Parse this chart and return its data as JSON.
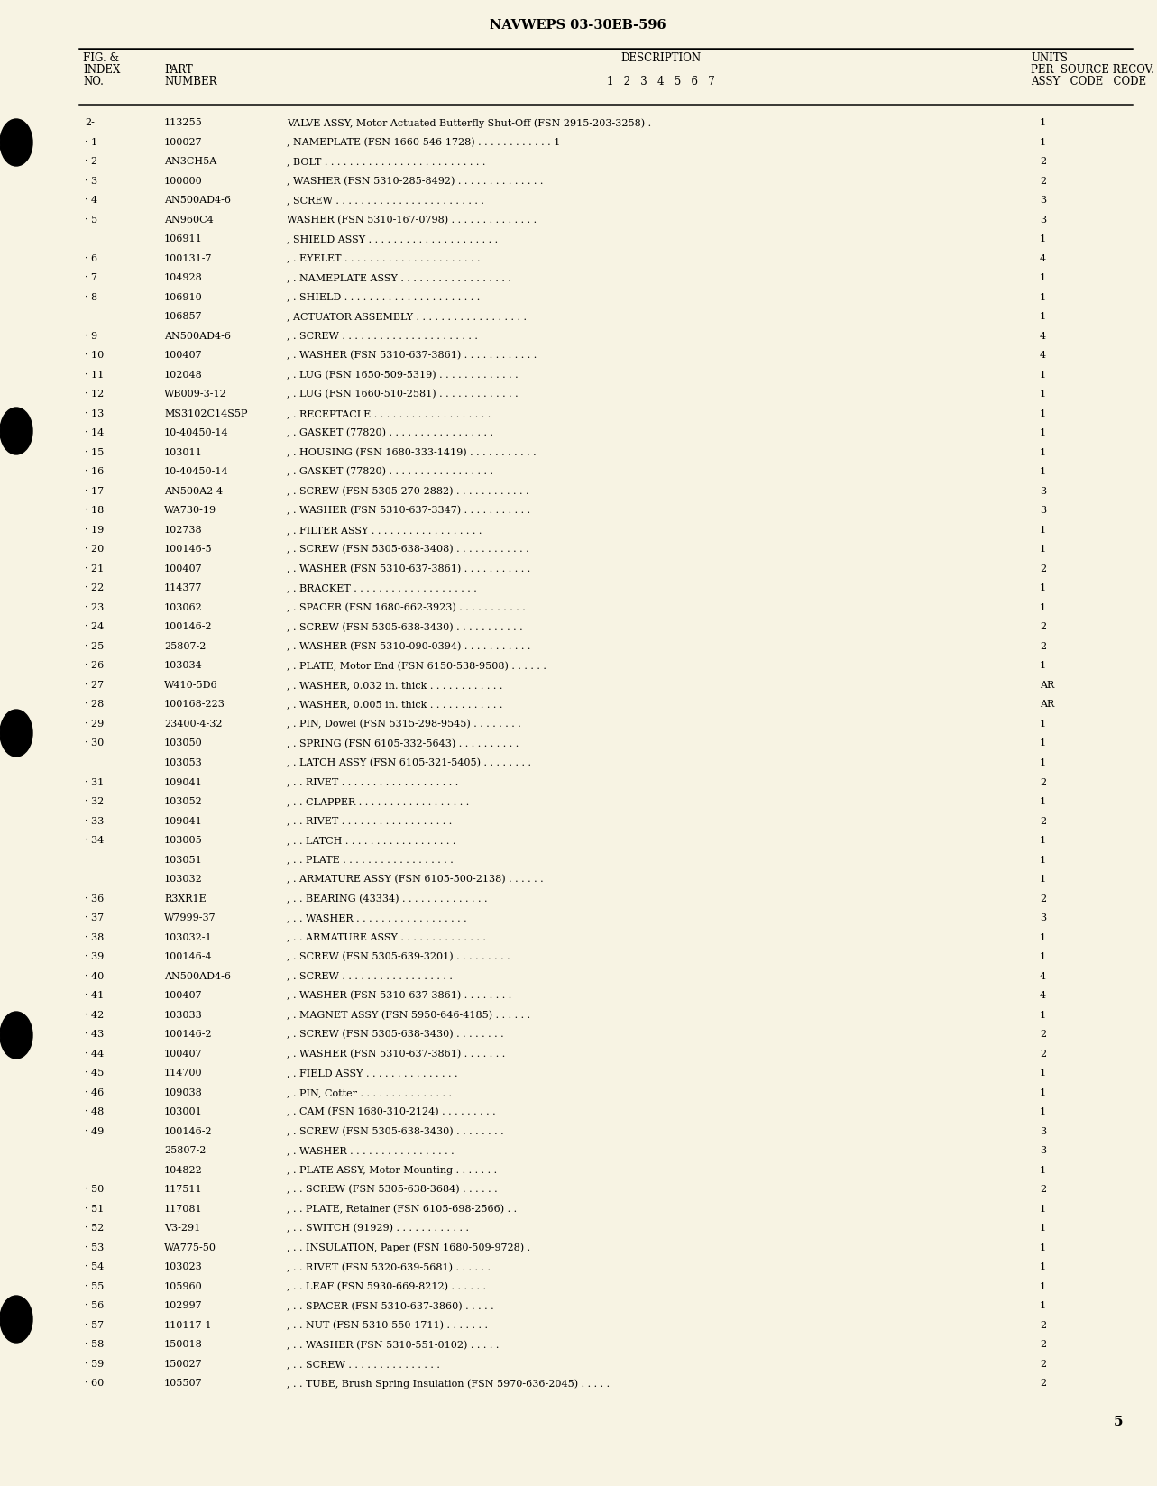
{
  "title": "NAVWEPS 03-30EB-596",
  "page_number": "5",
  "bg_color": "#f7f3e3",
  "rows": [
    {
      "index": "2-",
      "part": "113255",
      "indent": 0,
      "desc": "VALVE ASSY, Motor Actuated Butterfly Shut-Off (FSN 2915-203-3258) .",
      "qty": "1"
    },
    {
      "index": "· 1",
      "part": "100027",
      "indent": 1,
      "desc": ", NAMEPLATE (FSN 1660-546-1728) . . . . . . . . . . . . 1",
      "qty": "1"
    },
    {
      "index": "· 2",
      "part": "AN3CH5A",
      "indent": 1,
      "desc": ", BOLT . . . . . . . . . . . . . . . . . . . . . . . . . .",
      "qty": "2"
    },
    {
      "index": "· 3",
      "part": "100000",
      "indent": 1,
      "desc": ", WASHER (FSN 5310-285-8492) . . . . . . . . . . . . . .",
      "qty": "2"
    },
    {
      "index": "· 4",
      "part": "AN500AD4-6",
      "indent": 1,
      "desc": ", SCREW . . . . . . . . . . . . . . . . . . . . . . . .",
      "qty": "3"
    },
    {
      "index": "· 5",
      "part": "AN960C4",
      "indent": 1,
      "desc": "WASHER (FSN 5310-167-0798) . . . . . . . . . . . . . .",
      "qty": "3"
    },
    {
      "index": "",
      "part": "106911",
      "indent": 1,
      "desc": ", SHIELD ASSY . . . . . . . . . . . . . . . . . . . . .",
      "qty": "1"
    },
    {
      "index": "· 6",
      "part": "100131-7",
      "indent": 2,
      "desc": ", . EYELET . . . . . . . . . . . . . . . . . . . . . .",
      "qty": "4"
    },
    {
      "index": "· 7",
      "part": "104928",
      "indent": 2,
      "desc": ", . NAMEPLATE ASSY . . . . . . . . . . . . . . . . . .",
      "qty": "1"
    },
    {
      "index": "· 8",
      "part": "106910",
      "indent": 2,
      "desc": ", . SHIELD . . . . . . . . . . . . . . . . . . . . . .",
      "qty": "1"
    },
    {
      "index": "",
      "part": "106857",
      "indent": 1,
      "desc": ", ACTUATOR ASSEMBLY . . . . . . . . . . . . . . . . . .",
      "qty": "1"
    },
    {
      "index": "· 9",
      "part": "AN500AD4-6",
      "indent": 2,
      "desc": ", . SCREW . . . . . . . . . . . . . . . . . . . . . .",
      "qty": "4"
    },
    {
      "index": "· 10",
      "part": "100407",
      "indent": 2,
      "desc": ", . WASHER (FSN 5310-637-3861) . . . . . . . . . . . .",
      "qty": "4"
    },
    {
      "index": "· 11",
      "part": "102048",
      "indent": 2,
      "desc": ", . LUG (FSN 1650-509-5319) . . . . . . . . . . . . .",
      "qty": "1"
    },
    {
      "index": "· 12",
      "part": "WB009-3-12",
      "indent": 2,
      "desc": ", . LUG (FSN 1660-510-2581) . . . . . . . . . . . . .",
      "qty": "1"
    },
    {
      "index": "· 13",
      "part": "MS3102C14S5P",
      "indent": 2,
      "desc": ", . RECEPTACLE . . . . . . . . . . . . . . . . . . .",
      "qty": "1"
    },
    {
      "index": "· 14",
      "part": "10-40450-14",
      "indent": 2,
      "desc": ", . GASKET (77820) . . . . . . . . . . . . . . . . .",
      "qty": "1"
    },
    {
      "index": "· 15",
      "part": "103011",
      "indent": 2,
      "desc": ", . HOUSING (FSN 1680-333-1419) . . . . . . . . . . .",
      "qty": "1"
    },
    {
      "index": "· 16",
      "part": "10-40450-14",
      "indent": 2,
      "desc": ", . GASKET (77820) . . . . . . . . . . . . . . . . .",
      "qty": "1"
    },
    {
      "index": "· 17",
      "part": "AN500A2-4",
      "indent": 2,
      "desc": ", . SCREW (FSN 5305-270-2882) . . . . . . . . . . . .",
      "qty": "3"
    },
    {
      "index": "· 18",
      "part": "WA730-19",
      "indent": 2,
      "desc": ", . WASHER (FSN 5310-637-3347) . . . . . . . . . . .",
      "qty": "3"
    },
    {
      "index": "· 19",
      "part": "102738",
      "indent": 2,
      "desc": ", . FILTER ASSY . . . . . . . . . . . . . . . . . .",
      "qty": "1"
    },
    {
      "index": "· 20",
      "part": "100146-5",
      "indent": 2,
      "desc": ", . SCREW (FSN 5305-638-3408) . . . . . . . . . . . .",
      "qty": "1"
    },
    {
      "index": "· 21",
      "part": "100407",
      "indent": 2,
      "desc": ", . WASHER (FSN 5310-637-3861) . . . . . . . . . . .",
      "qty": "2"
    },
    {
      "index": "· 22",
      "part": "114377",
      "indent": 2,
      "desc": ", . BRACKET . . . . . . . . . . . . . . . . . . . .",
      "qty": "1"
    },
    {
      "index": "· 23",
      "part": "103062",
      "indent": 2,
      "desc": ", . SPACER (FSN 1680-662-3923) . . . . . . . . . . .",
      "qty": "1"
    },
    {
      "index": "· 24",
      "part": "100146-2",
      "indent": 2,
      "desc": ", . SCREW (FSN 5305-638-3430) . . . . . . . . . . .",
      "qty": "2"
    },
    {
      "index": "· 25",
      "part": "25807-2",
      "indent": 2,
      "desc": ", . WASHER (FSN 5310-090-0394) . . . . . . . . . . .",
      "qty": "2"
    },
    {
      "index": "· 26",
      "part": "103034",
      "indent": 2,
      "desc": ", . PLATE, Motor End (FSN 6150-538-9508) . . . . . .",
      "qty": "1"
    },
    {
      "index": "· 27",
      "part": "W410-5D6",
      "indent": 2,
      "desc": ", . WASHER, 0.032 in. thick . . . . . . . . . . . .",
      "qty": "AR"
    },
    {
      "index": "· 28",
      "part": "100168-223",
      "indent": 2,
      "desc": ", . WASHER, 0.005 in. thick . . . . . . . . . . . .",
      "qty": "AR"
    },
    {
      "index": "· 29",
      "part": "23400-4-32",
      "indent": 2,
      "desc": ", . PIN, Dowel (FSN 5315-298-9545) . . . . . . . .",
      "qty": "1"
    },
    {
      "index": "· 30",
      "part": "103050",
      "indent": 2,
      "desc": ", . SPRING (FSN 6105-332-5643) . . . . . . . . . .",
      "qty": "1"
    },
    {
      "index": "",
      "part": "103053",
      "indent": 2,
      "desc": ", . LATCH ASSY (FSN 6105-321-5405) . . . . . . . .",
      "qty": "1"
    },
    {
      "index": "· 31",
      "part": "109041",
      "indent": 3,
      "desc": ", . . RIVET . . . . . . . . . . . . . . . . . . .",
      "qty": "2"
    },
    {
      "index": "· 32",
      "part": "103052",
      "indent": 3,
      "desc": ", . . CLAPPER . . . . . . . . . . . . . . . . . .",
      "qty": "1"
    },
    {
      "index": "· 33",
      "part": "109041",
      "indent": 3,
      "desc": ", . . RIVET . . . . . . . . . . . . . . . . . .",
      "qty": "2"
    },
    {
      "index": "· 34",
      "part": "103005",
      "indent": 3,
      "desc": ", . . LATCH . . . . . . . . . . . . . . . . . .",
      "qty": "1"
    },
    {
      "index": "",
      "part": "103051",
      "indent": 3,
      "desc": ", . . PLATE . . . . . . . . . . . . . . . . . .",
      "qty": "1"
    },
    {
      "index": "",
      "part": "103032",
      "indent": 2,
      "desc": ", . ARMATURE ASSY (FSN 6105-500-2138) . . . . . .",
      "qty": "1"
    },
    {
      "index": "· 36",
      "part": "R3XR1E",
      "indent": 3,
      "desc": ", . . BEARING (43334) . . . . . . . . . . . . . .",
      "qty": "2"
    },
    {
      "index": "· 37",
      "part": "W7999-37",
      "indent": 3,
      "desc": ", . . WASHER . . . . . . . . . . . . . . . . . .",
      "qty": "3"
    },
    {
      "index": "· 38",
      "part": "103032-1",
      "indent": 3,
      "desc": ", . . ARMATURE ASSY . . . . . . . . . . . . . .",
      "qty": "1"
    },
    {
      "index": "· 39",
      "part": "100146-4",
      "indent": 2,
      "desc": ", . SCREW (FSN 5305-639-3201) . . . . . . . . .",
      "qty": "1"
    },
    {
      "index": "· 40",
      "part": "AN500AD4-6",
      "indent": 2,
      "desc": ", . SCREW . . . . . . . . . . . . . . . . . .",
      "qty": "4"
    },
    {
      "index": "· 41",
      "part": "100407",
      "indent": 2,
      "desc": ", . WASHER (FSN 5310-637-3861) . . . . . . . .",
      "qty": "4"
    },
    {
      "index": "· 42",
      "part": "103033",
      "indent": 2,
      "desc": ", . MAGNET ASSY (FSN 5950-646-4185) . . . . . .",
      "qty": "1"
    },
    {
      "index": "· 43",
      "part": "100146-2",
      "indent": 2,
      "desc": ", . SCREW (FSN 5305-638-3430) . . . . . . . .",
      "qty": "2"
    },
    {
      "index": "· 44",
      "part": "100407",
      "indent": 2,
      "desc": ", . WASHER (FSN 5310-637-3861) . . . . . . .",
      "qty": "2"
    },
    {
      "index": "· 45",
      "part": "114700",
      "indent": 2,
      "desc": ", . FIELD ASSY . . . . . . . . . . . . . . .",
      "qty": "1"
    },
    {
      "index": "· 46",
      "part": "109038",
      "indent": 2,
      "desc": ", . PIN, Cotter . . . . . . . . . . . . . . .",
      "qty": "1"
    },
    {
      "index": "· 48",
      "part": "103001",
      "indent": 2,
      "desc": ", . CAM (FSN 1680-310-2124) . . . . . . . . .",
      "qty": "1"
    },
    {
      "index": "· 49",
      "part": "100146-2",
      "indent": 2,
      "desc": ", . SCREW (FSN 5305-638-3430) . . . . . . . .",
      "qty": "3"
    },
    {
      "index": "",
      "part": "25807-2",
      "indent": 2,
      "desc": ", . WASHER . . . . . . . . . . . . . . . . .",
      "qty": "3"
    },
    {
      "index": "",
      "part": "104822",
      "indent": 2,
      "desc": ", . PLATE ASSY, Motor Mounting . . . . . . .",
      "qty": "1"
    },
    {
      "index": "· 50",
      "part": "117511",
      "indent": 3,
      "desc": ", . . SCREW (FSN 5305-638-3684) . . . . . .",
      "qty": "2"
    },
    {
      "index": "· 51",
      "part": "117081",
      "indent": 3,
      "desc": ", . . PLATE, Retainer (FSN 6105-698-2566) . .",
      "qty": "1"
    },
    {
      "index": "· 52",
      "part": "V3-291",
      "indent": 3,
      "desc": ", . . SWITCH (91929) . . . . . . . . . . . .",
      "qty": "1"
    },
    {
      "index": "· 53",
      "part": "WA775-50",
      "indent": 3,
      "desc": ", . . INSULATION, Paper (FSN 1680-509-9728) .",
      "qty": "1"
    },
    {
      "index": "· 54",
      "part": "103023",
      "indent": 3,
      "desc": ", . . RIVET (FSN 5320-639-5681) . . . . . .",
      "qty": "1"
    },
    {
      "index": "· 55",
      "part": "105960",
      "indent": 3,
      "desc": ", . . LEAF (FSN 5930-669-8212) . . . . . .",
      "qty": "1"
    },
    {
      "index": "· 56",
      "part": "102997",
      "indent": 3,
      "desc": ", . . SPACER (FSN 5310-637-3860) . . . . .",
      "qty": "1"
    },
    {
      "index": "· 57",
      "part": "110117-1",
      "indent": 3,
      "desc": ", . . NUT (FSN 5310-550-1711) . . . . . . .",
      "qty": "2"
    },
    {
      "index": "· 58",
      "part": "150018",
      "indent": 3,
      "desc": ", . . WASHER (FSN 5310-551-0102) . . . . .",
      "qty": "2"
    },
    {
      "index": "· 59",
      "part": "150027",
      "indent": 3,
      "desc": ", . . SCREW . . . . . . . . . . . . . . .",
      "qty": "2"
    },
    {
      "index": "· 60",
      "part": "105507",
      "indent": 3,
      "desc": ", . . TUBE, Brush Spring Insulation (FSN 5970-636-2045) . . . . .",
      "qty": "2"
    }
  ]
}
